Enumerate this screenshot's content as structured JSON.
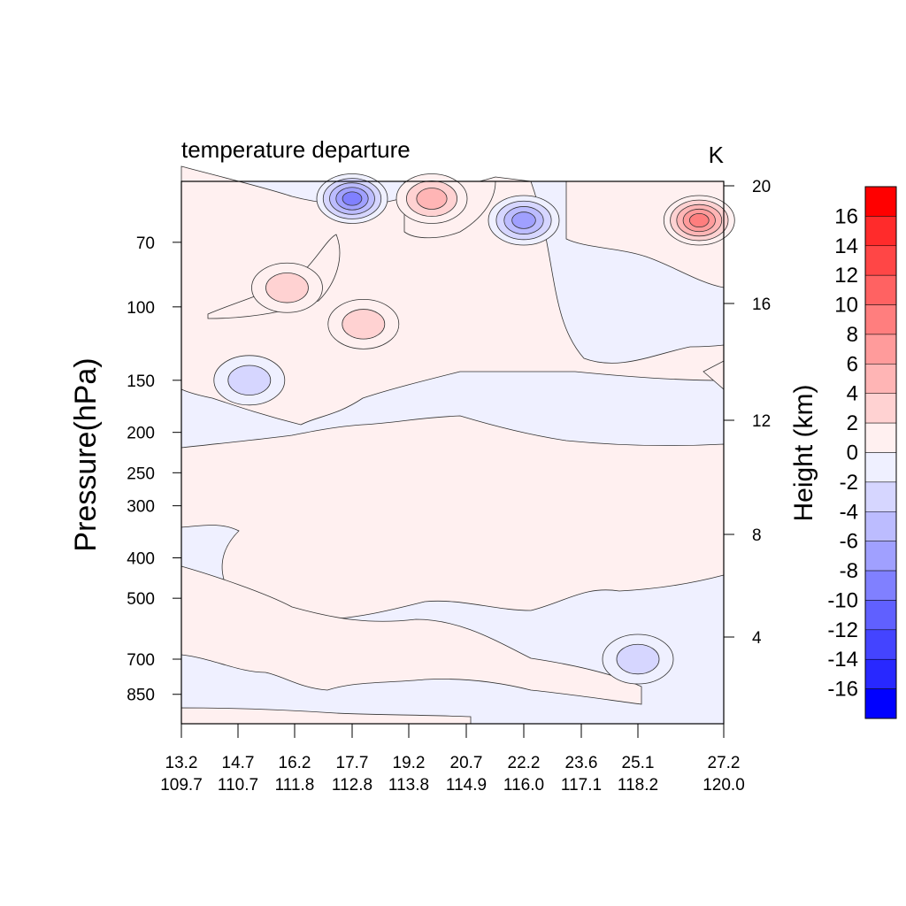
{
  "chart_data": {
    "type": "heatmap",
    "title": "temperature departure",
    "units": "K",
    "ylabel": "Pressure(hPa)",
    "ylabel_right": "Height (km)",
    "xlabel": "",
    "x_ticks": [
      {
        "lat": "13.2",
        "lon": "109.7"
      },
      {
        "lat": "14.7",
        "lon": "110.7"
      },
      {
        "lat": "16.2",
        "lon": "111.8"
      },
      {
        "lat": "17.7",
        "lon": "112.8"
      },
      {
        "lat": "19.2",
        "lon": "113.8"
      },
      {
        "lat": "20.7",
        "lon": "114.9"
      },
      {
        "lat": "22.2",
        "lon": "116.0"
      },
      {
        "lat": "23.6",
        "lon": "117.1"
      },
      {
        "lat": "25.1",
        "lon": "118.2"
      },
      {
        "lat": "27.2",
        "lon": "120.0"
      }
    ],
    "pressure_ticks": [
      70,
      100,
      150,
      200,
      250,
      300,
      400,
      500,
      700,
      850
    ],
    "pressure_range_hPa": [
      50,
      1000
    ],
    "pressure_axis_scale": "log",
    "height_ticks_km": [
      4,
      8,
      12,
      16,
      20
    ],
    "colorbar": {
      "labels": [
        "16",
        "14",
        "12",
        "10",
        "8",
        "6",
        "4",
        "2",
        "0",
        "-2",
        "-4",
        "-6",
        "-8",
        "-10",
        "-12",
        "-14",
        "-16"
      ],
      "colors": [
        "#ff0000",
        "#ff2b2b",
        "#ff4646",
        "#ff6262",
        "#ff7e7e",
        "#ff9b9b",
        "#ffb5b5",
        "#ffd2d2",
        "#fff0f0",
        "#eff0ff",
        "#d6d6ff",
        "#bcbcff",
        "#a0a0ff",
        "#8080ff",
        "#6060ff",
        "#4444ff",
        "#2828ff",
        "#0000ff"
      ],
      "interval": 2,
      "range": [
        -16,
        16
      ]
    },
    "features": [
      {
        "pressure_hPa": 55,
        "lat": 17.7,
        "value": -10
      },
      {
        "pressure_hPa": 55,
        "lat": 19.8,
        "value": 6
      },
      {
        "pressure_hPa": 62,
        "lat": 22.2,
        "value": -8
      },
      {
        "pressure_hPa": 62,
        "lat": 26.6,
        "value": 10
      },
      {
        "pressure_hPa": 90,
        "lat": 16.0,
        "value": 4
      },
      {
        "pressure_hPa": 150,
        "lat": 15.0,
        "value": -4
      },
      {
        "pressure_hPa": 110,
        "lat": 18.0,
        "value": 4
      },
      {
        "pressure_hPa": 700,
        "lat": 25.1,
        "value": -4
      }
    ]
  }
}
